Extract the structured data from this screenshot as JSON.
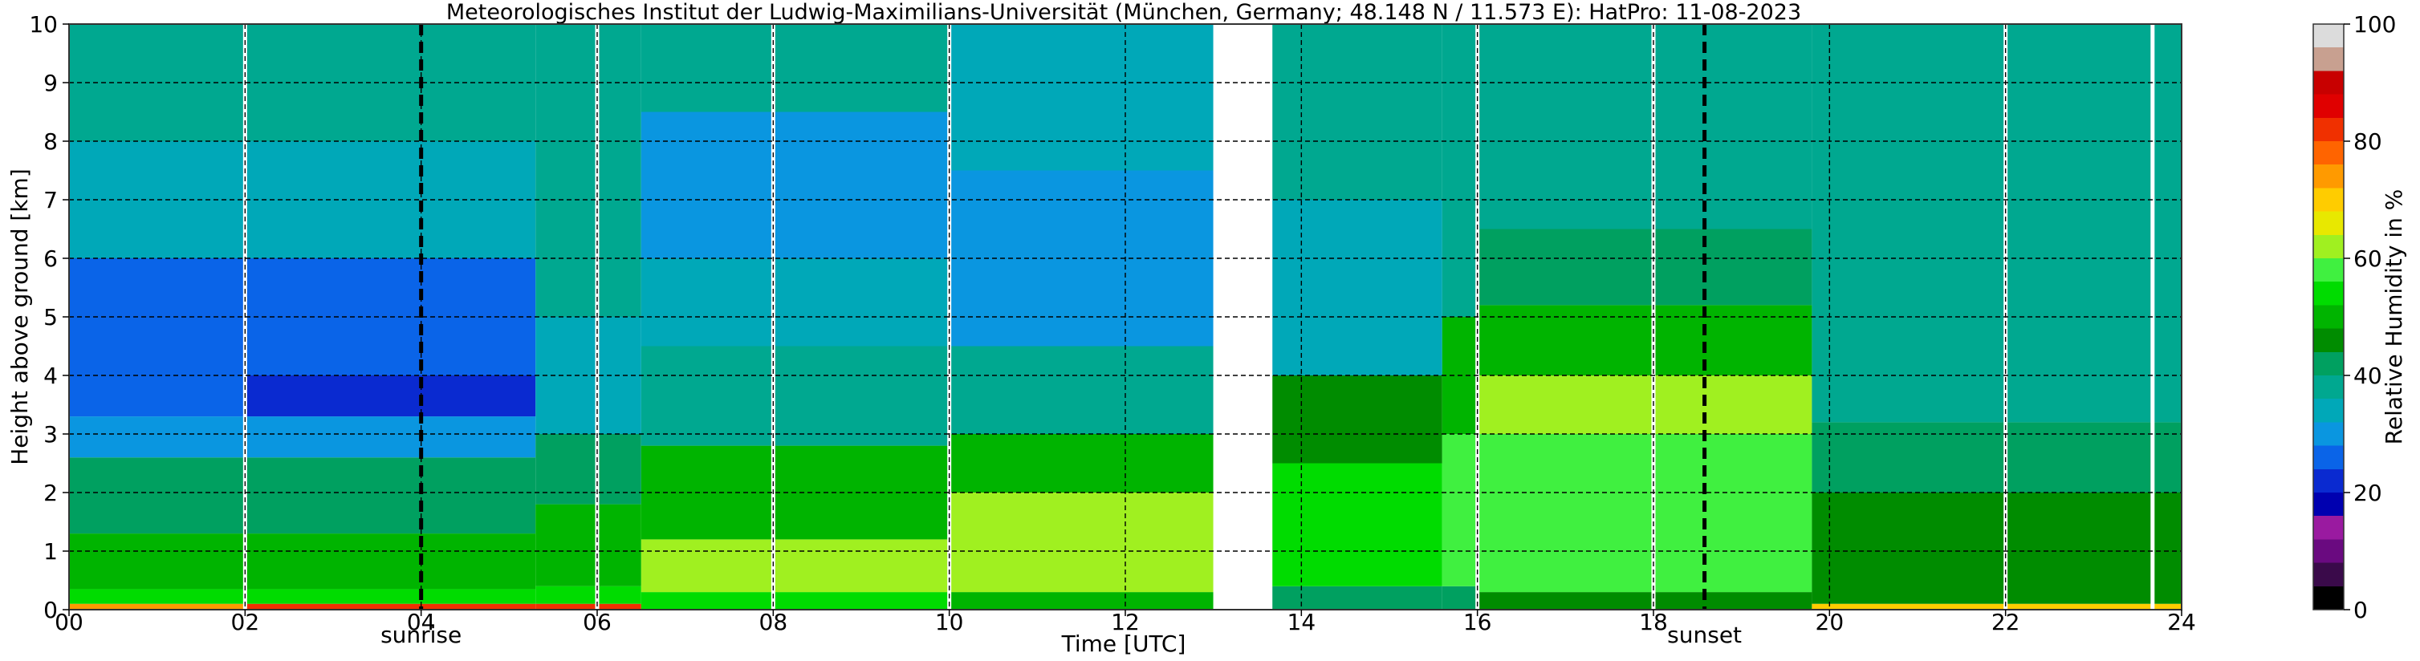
{
  "chart_data": {
    "type": "heatmap",
    "title": "Meteorologisches Institut der Ludwig-Maximilians-Universität (München, Germany; 48.148 N / 11.573 E):    HatPro: 11-08-2023",
    "xlabel": "Time [UTC]",
    "ylabel": "Height above ground [km]",
    "xlim": [
      0,
      24
    ],
    "ylim": [
      0,
      10
    ],
    "x_ticks": [
      "00",
      "02",
      "04",
      "06",
      "08",
      "10",
      "12",
      "14",
      "16",
      "18",
      "20",
      "22",
      "24"
    ],
    "y_ticks": [
      "0",
      "1",
      "2",
      "3",
      "4",
      "5",
      "6",
      "7",
      "8",
      "9",
      "10"
    ],
    "grid": true,
    "colorbar": {
      "label": "Relative Humidity in %",
      "range": [
        0,
        100
      ],
      "ticks": [
        "0",
        "20",
        "40",
        "60",
        "80",
        "100"
      ],
      "colors": [
        "#000000",
        "#3a0a4a",
        "#6a0a80",
        "#9a1aa0",
        "#0000b0",
        "#0a2ad0",
        "#0a64e8",
        "#0a96e0",
        "#00a8b8",
        "#00a890",
        "#00a060",
        "#008c00",
        "#00b400",
        "#00dc00",
        "#40f040",
        "#a0f020",
        "#e8e800",
        "#ffcc00",
        "#ff9a00",
        "#ff6400",
        "#f03000",
        "#e00000",
        "#c80000",
        "#c8a090",
        "#dcdcdc"
      ]
    },
    "annotations": [
      {
        "text": "sunrise",
        "x": 4.0
      },
      {
        "text": "sunset",
        "x": 18.58
      }
    ],
    "missing_data": [
      [
        13.0,
        13.67
      ]
    ],
    "gaps": [
      2.0,
      6.0,
      8.0,
      10.0,
      16.0,
      18.0,
      22.0,
      23.67
    ],
    "segments": [
      {
        "t0": 0.0,
        "t1": 2.0,
        "layers": [
          [
            0,
            0.1,
            75
          ],
          [
            0.1,
            0.35,
            55
          ],
          [
            0.35,
            1.3,
            48
          ],
          [
            1.3,
            2.6,
            40
          ],
          [
            2.6,
            3.3,
            30
          ],
          [
            3.3,
            4.0,
            24
          ],
          [
            4.0,
            6.0,
            27
          ],
          [
            6.0,
            8.0,
            33
          ],
          [
            8.0,
            10,
            38
          ]
        ]
      },
      {
        "t0": 2.0,
        "t1": 5.3,
        "layers": [
          [
            0,
            0.1,
            82
          ],
          [
            0.1,
            0.35,
            55
          ],
          [
            0.35,
            1.3,
            48
          ],
          [
            1.3,
            2.6,
            40
          ],
          [
            2.6,
            3.3,
            30
          ],
          [
            3.3,
            4.0,
            22
          ],
          [
            4.0,
            6.0,
            25
          ],
          [
            6.0,
            8.0,
            33
          ],
          [
            8.0,
            10,
            38
          ]
        ]
      },
      {
        "t0": 5.3,
        "t1": 6.5,
        "layers": [
          [
            0,
            0.1,
            80
          ],
          [
            0.1,
            0.4,
            55
          ],
          [
            0.4,
            1.8,
            48
          ],
          [
            1.8,
            3.0,
            40
          ],
          [
            3.0,
            5.0,
            33
          ],
          [
            5.0,
            10,
            36
          ]
        ]
      },
      {
        "t0": 6.5,
        "t1": 10.0,
        "layers": [
          [
            0,
            0.3,
            52
          ],
          [
            0.3,
            1.2,
            62
          ],
          [
            1.2,
            2.8,
            50
          ],
          [
            2.8,
            4.5,
            38
          ],
          [
            4.5,
            6.0,
            33
          ],
          [
            6.0,
            8.5,
            30
          ],
          [
            8.5,
            10,
            36
          ]
        ]
      },
      {
        "t0": 10.0,
        "t1": 13.0,
        "layers": [
          [
            0,
            0.3,
            50
          ],
          [
            0.3,
            2.0,
            60
          ],
          [
            2.0,
            3.0,
            50
          ],
          [
            3.0,
            4.5,
            38
          ],
          [
            4.5,
            7.5,
            28
          ],
          [
            7.5,
            10,
            34
          ]
        ]
      },
      {
        "t0": 13.67,
        "t1": 15.6,
        "layers": [
          [
            0,
            0.4,
            40
          ],
          [
            0.4,
            2.5,
            55
          ],
          [
            2.5,
            4.0,
            46
          ],
          [
            4.0,
            7.0,
            34
          ],
          [
            7.0,
            10,
            36
          ]
        ]
      },
      {
        "t0": 15.6,
        "t1": 16.0,
        "layers": [
          [
            0,
            0.4,
            40
          ],
          [
            0.4,
            3.0,
            58
          ],
          [
            3.0,
            5.0,
            50
          ],
          [
            5.0,
            10,
            38
          ]
        ]
      },
      {
        "t0": 16.0,
        "t1": 19.8,
        "layers": [
          [
            0,
            0.3,
            44
          ],
          [
            0.3,
            3.0,
            56
          ],
          [
            3.0,
            4.0,
            62
          ],
          [
            4.0,
            5.2,
            50
          ],
          [
            5.2,
            6.5,
            40
          ],
          [
            6.5,
            10,
            38
          ]
        ]
      },
      {
        "t0": 19.8,
        "t1": 24.0,
        "layers": [
          [
            0,
            0.1,
            68
          ],
          [
            0.1,
            2.0,
            46
          ],
          [
            2.0,
            3.2,
            42
          ],
          [
            3.2,
            10,
            38
          ]
        ]
      }
    ]
  }
}
